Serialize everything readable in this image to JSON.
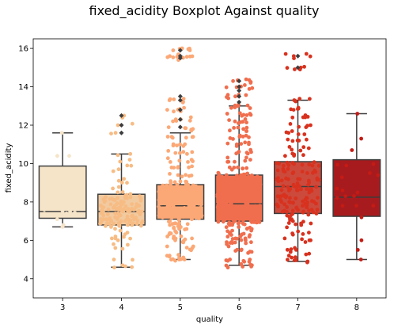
{
  "chart_data": {
    "type": "boxplot",
    "title": "fixed_acidity Boxplot Against quality",
    "xlabel": "quality",
    "ylabel": "fixed_acidity",
    "categories": [
      "3",
      "4",
      "5",
      "6",
      "7",
      "8"
    ],
    "ylim": [
      3.0,
      16.5
    ],
    "yticks": [
      4,
      6,
      8,
      10,
      12,
      14,
      16
    ],
    "grid": false,
    "legend": "none",
    "boxes": [
      {
        "category": "3",
        "whisker_low": 6.7,
        "q1": 7.15,
        "median": 7.5,
        "q3": 9.87,
        "whisker_high": 11.6,
        "outliers": [],
        "color": "#f6e4c8"
      },
      {
        "category": "4",
        "whisker_low": 4.6,
        "q1": 6.8,
        "median": 7.5,
        "q3": 8.4,
        "whisker_high": 10.5,
        "outliers": [
          11.6,
          12.0,
          12.5
        ],
        "color": "#f1caa0"
      },
      {
        "category": "5",
        "whisker_low": 5.0,
        "q1": 7.1,
        "median": 7.8,
        "q3": 8.9,
        "whisker_high": 11.6,
        "outliers": [
          11.9,
          12.3,
          12.8,
          13.3,
          13.5,
          15.5,
          15.6,
          15.9
        ],
        "color": "#fca876"
      },
      {
        "category": "6",
        "whisker_low": 4.7,
        "q1": 7.0,
        "median": 7.9,
        "q3": 9.4,
        "whisker_high": 13.0,
        "outliers": [
          13.2,
          13.5,
          13.8,
          14.0,
          14.3
        ],
        "color": "#f06e4e"
      },
      {
        "category": "7",
        "whisker_low": 4.9,
        "q1": 7.4,
        "median": 8.8,
        "q3": 10.1,
        "whisker_high": 13.3,
        "outliers": [
          15.0,
          15.6
        ],
        "color": "#cc4a3c"
      },
      {
        "category": "8",
        "whisker_low": 5.0,
        "q1": 7.25,
        "median": 8.25,
        "q3": 10.2,
        "whisker_high": 12.6,
        "outliers": [],
        "color": "#a71b1e"
      }
    ],
    "swarm": [
      {
        "category": "3",
        "color": "#f6e4c8",
        "values": [
          6.7,
          6.8,
          7.1,
          7.3,
          7.4,
          7.6,
          8.3,
          10.4,
          10.4,
          11.6
        ]
      },
      {
        "category": "4",
        "color": "#f7bc84",
        "values": [
          4.6,
          4.7,
          5.0,
          5.6,
          5.8,
          6.0,
          6.1,
          6.2,
          6.4,
          6.6,
          6.7,
          6.8,
          6.8,
          6.9,
          7.0,
          7.0,
          7.1,
          7.2,
          7.3,
          7.4,
          7.5,
          7.5,
          7.6,
          7.6,
          7.7,
          7.8,
          7.9,
          8.0,
          8.1,
          8.2,
          8.3,
          8.5,
          8.7,
          9.0,
          9.2,
          9.6,
          9.9,
          10.2,
          10.5,
          11.6,
          12.0,
          12.5
        ]
      },
      {
        "category": "5",
        "color": "#fca876",
        "values": [
          5.0,
          5.2,
          5.6,
          6.0,
          6.2,
          6.4,
          6.6,
          6.8,
          7.0,
          7.2,
          7.4,
          7.6,
          7.8,
          8.0,
          8.2,
          8.4,
          8.6,
          8.8,
          9.0,
          9.4,
          9.8,
          10.2,
          10.6,
          11.0,
          11.4,
          11.8,
          12.3,
          12.8,
          13.3,
          15.5,
          15.6,
          15.9
        ]
      },
      {
        "category": "6",
        "color": "#f06e4e",
        "values": [
          4.7,
          5.0,
          5.4,
          5.8,
          6.0,
          6.2,
          6.4,
          6.6,
          6.8,
          7.0,
          7.2,
          7.4,
          7.6,
          7.8,
          8.0,
          8.2,
          8.4,
          8.6,
          8.8,
          9.0,
          9.4,
          9.8,
          10.2,
          10.6,
          11.0,
          11.4,
          11.8,
          12.2,
          12.6,
          13.0,
          13.5,
          14.0,
          14.3
        ]
      },
      {
        "category": "7",
        "color": "#d8321f",
        "values": [
          4.9,
          5.2,
          5.5,
          6.0,
          6.4,
          6.8,
          7.0,
          7.3,
          7.5,
          7.8,
          8.0,
          8.3,
          8.6,
          8.9,
          9.2,
          9.6,
          10.0,
          10.4,
          10.8,
          11.2,
          11.6,
          12.0,
          12.4,
          12.8,
          13.3,
          15.0,
          15.6
        ]
      },
      {
        "category": "8",
        "color": "#c41b15",
        "values": [
          5.0,
          5.5,
          6.0,
          7.2,
          7.8,
          8.3,
          8.6,
          9.4,
          9.9,
          10.7,
          11.3,
          12.6
        ]
      }
    ],
    "swarm_weights": [
      1,
      2,
      5,
      6,
      4,
      1
    ]
  }
}
